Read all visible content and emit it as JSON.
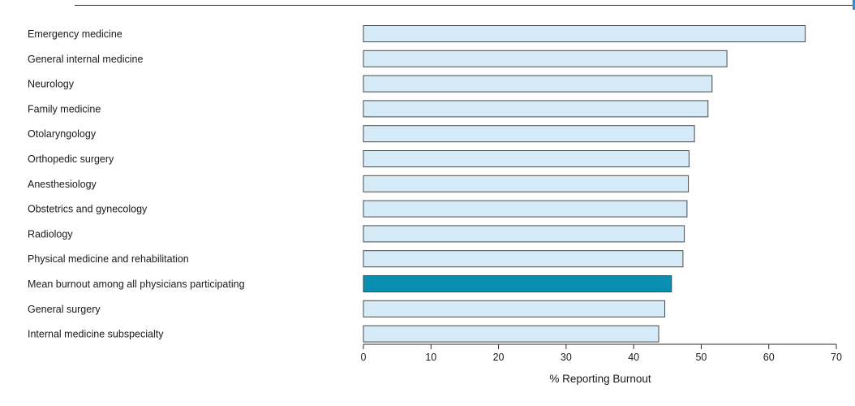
{
  "chart_data": {
    "type": "bar",
    "orientation": "horizontal",
    "categories": [
      "Emergency medicine",
      "General internal medicine",
      "Neurology",
      "Family medicine",
      "Otolaryngology",
      "Orthopedic surgery",
      "Anesthesiology",
      "Obstetrics and gynecology",
      "Radiology",
      "Physical medicine and rehabilitation",
      "Mean burnout among all physicians participating",
      "General surgery",
      "Internal medicine subspecialty"
    ],
    "values": [
      65.4,
      53.8,
      51.6,
      51.0,
      49.0,
      48.2,
      48.1,
      47.9,
      47.5,
      47.3,
      45.6,
      44.6,
      43.7
    ],
    "highlight": "Mean burnout among all physicians participating",
    "xlabel": "% Reporting Burnout",
    "xlim": [
      0,
      70
    ],
    "xticks": [
      0,
      10,
      20,
      30,
      40,
      50,
      60,
      70
    ],
    "grid": false,
    "colors": {
      "bar_fill": "#d6ebf8",
      "bar_stroke": "#4a4a4a",
      "highlight_fill": "#0a8fb3"
    }
  }
}
